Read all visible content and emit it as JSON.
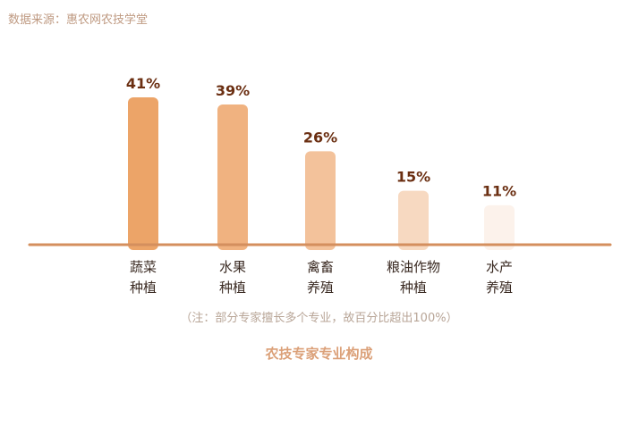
{
  "source": "数据来源：惠农网农技学堂",
  "note": "（注：部分专家擅长多个专业，故百分比超出100%）",
  "caption": "农技专家专业构成",
  "colors": {
    "axis": "#d48f5e",
    "value_label": "#6b2f12",
    "category_label": "#3a2a22",
    "bars": [
      "#eca468",
      "#f0b280",
      "#f3c29b",
      "#f7d9c1",
      "#fcf2eb"
    ]
  },
  "chart_data": {
    "type": "bar",
    "categories": [
      [
        "蔬菜",
        "种植"
      ],
      [
        "水果",
        "种植"
      ],
      [
        "禽畜",
        "养殖"
      ],
      [
        "粮油作物",
        "种植"
      ],
      [
        "水产",
        "养殖"
      ]
    ],
    "values": [
      41,
      39,
      26,
      15,
      11
    ],
    "value_labels": [
      "41%",
      "39%",
      "26%",
      "15%",
      "11%"
    ],
    "title": "",
    "xlabel": "",
    "ylabel": "",
    "ylim": [
      0,
      41
    ],
    "grid": false,
    "legend": "none"
  }
}
